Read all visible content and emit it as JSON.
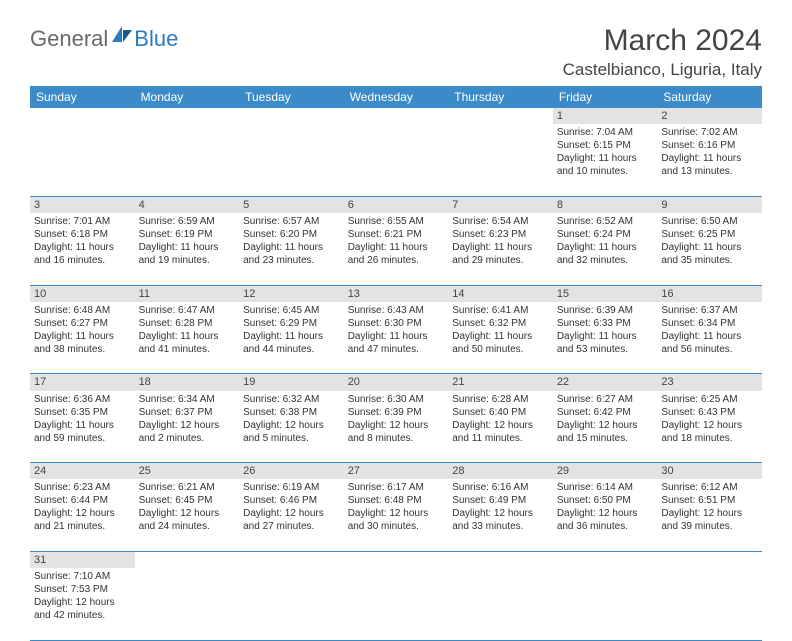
{
  "logo": {
    "part1": "General",
    "part2": "Blue"
  },
  "title": "March 2024",
  "location": "Castelbianco, Liguria, Italy",
  "colors": {
    "header_bg": "#3b8bc9",
    "header_text": "#ffffff",
    "daynum_bg": "#e3e3e3",
    "border": "#3b8bc9",
    "text": "#333333",
    "logo_general": "#6a6a6a",
    "logo_blue": "#2b7bbf"
  },
  "weekdays": [
    "Sunday",
    "Monday",
    "Tuesday",
    "Wednesday",
    "Thursday",
    "Friday",
    "Saturday"
  ],
  "weeks": [
    [
      null,
      null,
      null,
      null,
      null,
      {
        "n": "1",
        "sr": "7:04 AM",
        "ss": "6:15 PM",
        "dl": "11 hours and 10 minutes."
      },
      {
        "n": "2",
        "sr": "7:02 AM",
        "ss": "6:16 PM",
        "dl": "11 hours and 13 minutes."
      }
    ],
    [
      {
        "n": "3",
        "sr": "7:01 AM",
        "ss": "6:18 PM",
        "dl": "11 hours and 16 minutes."
      },
      {
        "n": "4",
        "sr": "6:59 AM",
        "ss": "6:19 PM",
        "dl": "11 hours and 19 minutes."
      },
      {
        "n": "5",
        "sr": "6:57 AM",
        "ss": "6:20 PM",
        "dl": "11 hours and 23 minutes."
      },
      {
        "n": "6",
        "sr": "6:55 AM",
        "ss": "6:21 PM",
        "dl": "11 hours and 26 minutes."
      },
      {
        "n": "7",
        "sr": "6:54 AM",
        "ss": "6:23 PM",
        "dl": "11 hours and 29 minutes."
      },
      {
        "n": "8",
        "sr": "6:52 AM",
        "ss": "6:24 PM",
        "dl": "11 hours and 32 minutes."
      },
      {
        "n": "9",
        "sr": "6:50 AM",
        "ss": "6:25 PM",
        "dl": "11 hours and 35 minutes."
      }
    ],
    [
      {
        "n": "10",
        "sr": "6:48 AM",
        "ss": "6:27 PM",
        "dl": "11 hours and 38 minutes."
      },
      {
        "n": "11",
        "sr": "6:47 AM",
        "ss": "6:28 PM",
        "dl": "11 hours and 41 minutes."
      },
      {
        "n": "12",
        "sr": "6:45 AM",
        "ss": "6:29 PM",
        "dl": "11 hours and 44 minutes."
      },
      {
        "n": "13",
        "sr": "6:43 AM",
        "ss": "6:30 PM",
        "dl": "11 hours and 47 minutes."
      },
      {
        "n": "14",
        "sr": "6:41 AM",
        "ss": "6:32 PM",
        "dl": "11 hours and 50 minutes."
      },
      {
        "n": "15",
        "sr": "6:39 AM",
        "ss": "6:33 PM",
        "dl": "11 hours and 53 minutes."
      },
      {
        "n": "16",
        "sr": "6:37 AM",
        "ss": "6:34 PM",
        "dl": "11 hours and 56 minutes."
      }
    ],
    [
      {
        "n": "17",
        "sr": "6:36 AM",
        "ss": "6:35 PM",
        "dl": "11 hours and 59 minutes."
      },
      {
        "n": "18",
        "sr": "6:34 AM",
        "ss": "6:37 PM",
        "dl": "12 hours and 2 minutes."
      },
      {
        "n": "19",
        "sr": "6:32 AM",
        "ss": "6:38 PM",
        "dl": "12 hours and 5 minutes."
      },
      {
        "n": "20",
        "sr": "6:30 AM",
        "ss": "6:39 PM",
        "dl": "12 hours and 8 minutes."
      },
      {
        "n": "21",
        "sr": "6:28 AM",
        "ss": "6:40 PM",
        "dl": "12 hours and 11 minutes."
      },
      {
        "n": "22",
        "sr": "6:27 AM",
        "ss": "6:42 PM",
        "dl": "12 hours and 15 minutes."
      },
      {
        "n": "23",
        "sr": "6:25 AM",
        "ss": "6:43 PM",
        "dl": "12 hours and 18 minutes."
      }
    ],
    [
      {
        "n": "24",
        "sr": "6:23 AM",
        "ss": "6:44 PM",
        "dl": "12 hours and 21 minutes."
      },
      {
        "n": "25",
        "sr": "6:21 AM",
        "ss": "6:45 PM",
        "dl": "12 hours and 24 minutes."
      },
      {
        "n": "26",
        "sr": "6:19 AM",
        "ss": "6:46 PM",
        "dl": "12 hours and 27 minutes."
      },
      {
        "n": "27",
        "sr": "6:17 AM",
        "ss": "6:48 PM",
        "dl": "12 hours and 30 minutes."
      },
      {
        "n": "28",
        "sr": "6:16 AM",
        "ss": "6:49 PM",
        "dl": "12 hours and 33 minutes."
      },
      {
        "n": "29",
        "sr": "6:14 AM",
        "ss": "6:50 PM",
        "dl": "12 hours and 36 minutes."
      },
      {
        "n": "30",
        "sr": "6:12 AM",
        "ss": "6:51 PM",
        "dl": "12 hours and 39 minutes."
      }
    ],
    [
      {
        "n": "31",
        "sr": "7:10 AM",
        "ss": "7:53 PM",
        "dl": "12 hours and 42 minutes."
      },
      null,
      null,
      null,
      null,
      null,
      null
    ]
  ],
  "labels": {
    "sunrise": "Sunrise:",
    "sunset": "Sunset:",
    "daylight": "Daylight:"
  }
}
